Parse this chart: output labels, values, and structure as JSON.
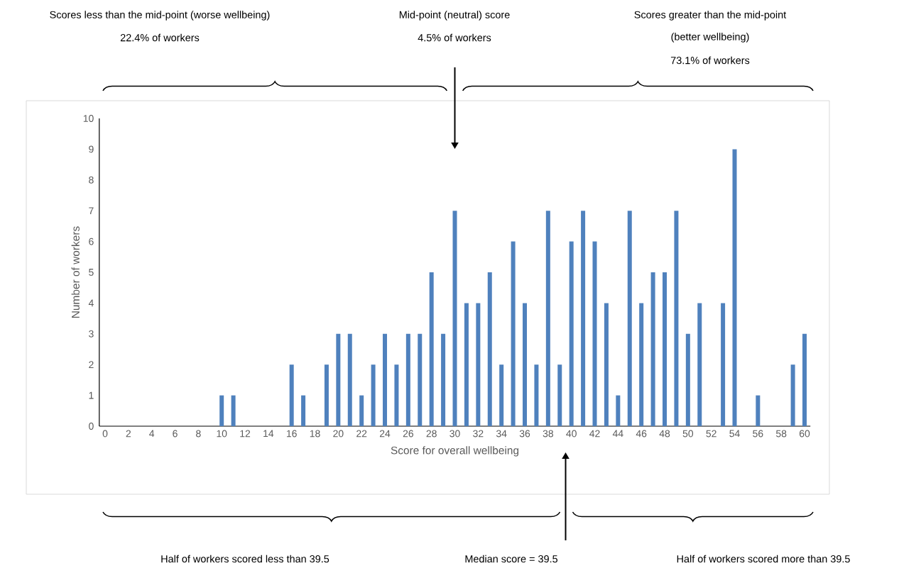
{
  "chart_data": {
    "type": "bar",
    "xlabel": "Score for overall wellbeing",
    "ylabel": "Number of workers",
    "color": "#4f81bd",
    "ylim": [
      0,
      10
    ],
    "yticks": [
      0,
      1,
      2,
      3,
      4,
      5,
      6,
      7,
      8,
      9,
      10
    ],
    "categories": [
      "0",
      null,
      "2",
      null,
      "4",
      null,
      "6",
      null,
      "8",
      null,
      "10",
      null,
      "12",
      null,
      "14",
      null,
      "16",
      null,
      "18",
      null,
      "20",
      null,
      "22",
      null,
      "24",
      null,
      "26",
      null,
      "28",
      null,
      "30",
      null,
      "32",
      null,
      "34",
      null,
      "36",
      null,
      "38",
      null,
      "40",
      null,
      "42",
      null,
      "44",
      null,
      "46",
      null,
      "48",
      null,
      "50",
      null,
      "52",
      null,
      "54",
      null,
      "56",
      null,
      "58",
      null,
      "60"
    ],
    "values": [
      0,
      0,
      0,
      0,
      0,
      0,
      0,
      0,
      0,
      0,
      1,
      1,
      0,
      0,
      0,
      0,
      2,
      1,
      0,
      2,
      3,
      3,
      1,
      2,
      3,
      2,
      3,
      3,
      5,
      3,
      7,
      4,
      4,
      5,
      2,
      6,
      4,
      2,
      7,
      2,
      6,
      7,
      6,
      4,
      1,
      7,
      4,
      5,
      5,
      7,
      3,
      4,
      0,
      4,
      9,
      0,
      1,
      0,
      0,
      2,
      3
    ],
    "annotations": [
      "Scores less than the mid-point (worse wellbeing)",
      "22.4% of workers",
      "Mid-point (neutral) score",
      "4.5% of workers",
      "Scores greater than the mid-point",
      "(better wellbeing)",
      "73.1% of workers",
      "Half of workers scored less than 39.5",
      "Median score = 39.5",
      "Half of workers scored more than 39.5"
    ]
  }
}
